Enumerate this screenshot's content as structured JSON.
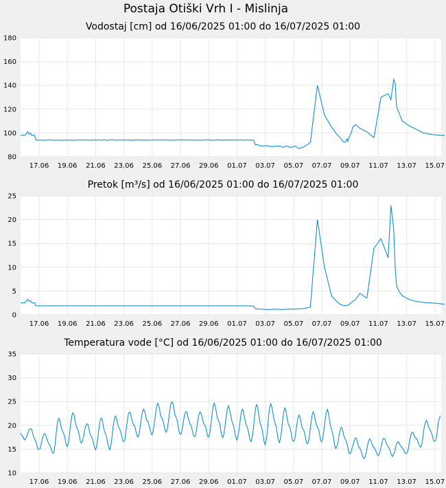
{
  "page_title": "Postaja Otiški Vrh I - Mislinja",
  "colors": {
    "line": "#0d8fd0",
    "grid": "#e6e6e6",
    "plot_bg": "#ffffff",
    "page_bg": "#f0f0f0"
  },
  "chart_data": [
    {
      "type": "line",
      "title": "Vodostaj [cm] od 16/06/2025 01:00 do 16/07/2025 01:00",
      "x_ticks": [
        "17.06",
        "19.06",
        "21.06",
        "23.06",
        "25.06",
        "27.06",
        "29.06",
        "01.07",
        "03.07",
        "05.07",
        "07.07",
        "09.07",
        "11.07",
        "13.07",
        "15.07"
      ],
      "y_ticks": [
        "80",
        "100",
        "120",
        "140",
        "160",
        "180"
      ],
      "ylim": [
        80,
        180
      ],
      "grid": true,
      "series": [
        {
          "x": [
            0,
            0.3,
            0.5,
            0.6,
            0.7,
            0.8,
            0.9,
            1.0,
            1.05,
            1.1,
            1.3,
            1.5,
            1.8,
            2.0,
            3.0,
            5.0,
            7.0,
            9.0,
            10.0,
            10.5,
            11.0,
            11.5,
            12.0,
            13.0,
            14.0,
            15.0,
            16.0,
            16.5,
            16.6,
            16.8,
            17.0,
            17.3,
            17.6,
            17.8,
            18.0,
            18.3,
            18.6,
            18.8,
            19.0,
            19.2,
            19.4,
            19.7,
            20.0,
            20.5,
            21.0,
            21.5,
            22.0,
            22.3,
            22.6,
            22.8,
            22.9,
            23.0,
            23.05,
            23.1,
            23.15,
            23.2,
            23.25,
            23.3,
            23.4,
            23.5,
            23.7,
            24.0,
            24.5,
            25.0,
            25.5,
            26.0,
            26.2,
            26.4,
            26.5,
            26.6,
            26.8,
            27.0,
            27.5,
            28.0,
            28.5,
            29.0,
            29.5,
            30.0
          ],
          "y": [
            98,
            98,
            101,
            99,
            100,
            98,
            98,
            98,
            95,
            94,
            94,
            94,
            94,
            94,
            94,
            94,
            94,
            94,
            94,
            94,
            94,
            94,
            94,
            94,
            94,
            94,
            94,
            94,
            90,
            90,
            89,
            89,
            89,
            88,
            89,
            89,
            88,
            89,
            88,
            88,
            89,
            87,
            88,
            92,
            140,
            115,
            105,
            100,
            96,
            93,
            92,
            93,
            94,
            95,
            93,
            95,
            97,
            98,
            100,
            105,
            107,
            104,
            101,
            96,
            130,
            133,
            128,
            145,
            142,
            122,
            116,
            110,
            106,
            103,
            100,
            99,
            98,
            98
          ]
        }
      ]
    },
    {
      "type": "line",
      "title": "Pretok [m³/s] od 16/06/2025 01:00 do 16/07/2025 01:00",
      "x_ticks": [
        "17.06",
        "19.06",
        "21.06",
        "23.06",
        "25.06",
        "27.06",
        "29.06",
        "01.07",
        "03.07",
        "05.07",
        "07.07",
        "09.07",
        "11.07",
        "13.07",
        "15.07"
      ],
      "y_ticks": [
        "0",
        "5",
        "10",
        "15",
        "20",
        "25"
      ],
      "ylim": [
        0,
        25
      ],
      "grid": true,
      "series": [
        {
          "x": [
            0,
            0.3,
            0.5,
            0.6,
            0.7,
            0.8,
            0.9,
            1.0,
            1.05,
            1.1,
            1.5,
            2.0,
            3.0,
            5.0,
            7.0,
            9.0,
            10.0,
            11.0,
            12.0,
            13.0,
            14.0,
            15.0,
            16.0,
            16.5,
            16.6,
            16.8,
            17.0,
            17.5,
            18.0,
            18.5,
            19.0,
            19.5,
            20.0,
            20.5,
            21.0,
            21.5,
            22.0,
            22.3,
            22.5,
            22.6,
            22.8,
            23.0,
            23.1,
            23.2,
            23.5,
            23.7,
            24.0,
            24.5,
            25.0,
            25.5,
            26.0,
            26.2,
            26.4,
            26.5,
            26.6,
            26.8,
            27.0,
            27.5,
            28.0,
            28.5,
            29.0,
            29.5,
            30.0
          ],
          "y": [
            2.5,
            2.5,
            3.3,
            2.8,
            3.0,
            2.5,
            2.5,
            2.5,
            2.0,
            1.9,
            1.9,
            1.9,
            1.9,
            1.9,
            1.9,
            1.9,
            1.9,
            1.9,
            1.9,
            1.9,
            1.9,
            1.9,
            1.9,
            1.8,
            1.3,
            1.2,
            1.2,
            1.1,
            1.2,
            1.1,
            1.2,
            1.2,
            1.3,
            1.6,
            20,
            10,
            4,
            3,
            2.5,
            2.2,
            2.0,
            1.9,
            2.0,
            2.1,
            2.8,
            3.2,
            4.5,
            3.5,
            14,
            16,
            12,
            23,
            18,
            10,
            6,
            4.8,
            4,
            3.2,
            2.8,
            2.6,
            2.5,
            2.4,
            2.2
          ]
        }
      ]
    },
    {
      "type": "line",
      "title": "Temperatura vode [°C] od 16/06/2025 01:00 do 16/07/2025 01:00",
      "x_ticks": [
        "17.06",
        "19.06",
        "21.06",
        "23.06",
        "25.06",
        "27.06",
        "29.06",
        "01.07",
        "03.07",
        "05.07",
        "07.07",
        "09.07",
        "11.07",
        "13.07",
        "15.07"
      ],
      "y_ticks": [
        "10",
        "15",
        "20",
        "25",
        "30",
        "35"
      ],
      "ylim": [
        10,
        35
      ],
      "grid": true,
      "series": [
        {
          "name": "",
          "daily_max": [
            19.4,
            18.4,
            21.5,
            22.7,
            20.4,
            21.6,
            21.8,
            22.9,
            23.4,
            24.5,
            25.1,
            23.0,
            22.8,
            24.6,
            24.0,
            23.3,
            24.2,
            24.6,
            23.5,
            22.1,
            22.7,
            23.3,
            19.5,
            17.4,
            17.1,
            17.4,
            16.4,
            18.6,
            21.1,
            22.1,
            21.5
          ],
          "daily_min": [
            17.0,
            14.8,
            14.0,
            15.5,
            16.3,
            15.0,
            15.0,
            16.5,
            17.5,
            18.0,
            18.5,
            18.0,
            17.5,
            17.5,
            17.5,
            17.0,
            16.5,
            16.0,
            16.5,
            16.5,
            16.0,
            16.5,
            15.0,
            14.0,
            13.0,
            13.5,
            13.5,
            14.0,
            15.5,
            16.5,
            17.0
          ]
        }
      ]
    }
  ]
}
